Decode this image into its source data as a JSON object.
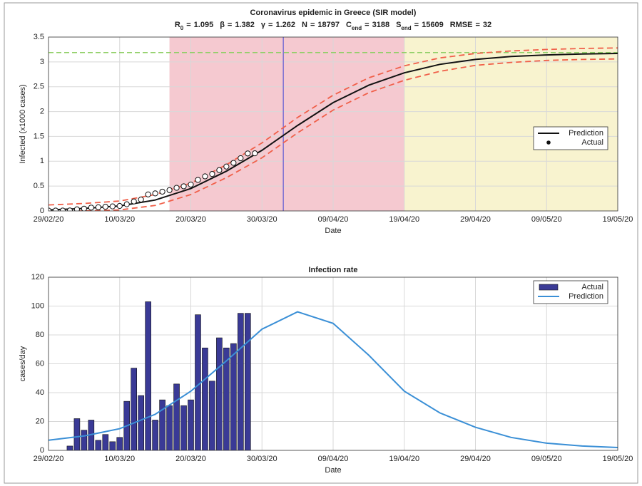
{
  "chart_data": [
    {
      "type": "line",
      "title": "Coronavirus epidemic in Greece (SIR model)",
      "params": [
        {
          "symbol": "R",
          "sub": "0",
          "sign": "=",
          "value": 1.095
        },
        {
          "symbol": "β",
          "sign": "=",
          "value": 1.382
        },
        {
          "symbol": "γ",
          "sign": "=",
          "value": 1.262
        },
        {
          "symbol": "N",
          "sign": "=",
          "value": 18797
        },
        {
          "symbol": "C",
          "sub": "end",
          "sign": "=",
          "value": 3188
        },
        {
          "symbol": "S",
          "sub": "end",
          "sign": "=",
          "value": 15609
        },
        {
          "symbol": "RMSE",
          "sign": "=",
          "value": 32
        }
      ],
      "x_label": "Date",
      "y_label": "Infected (x1000 cases)",
      "xlim": [
        "29/02/20",
        "19/05/20"
      ],
      "xticks": [
        "29/02/20",
        "10/03/20",
        "20/03/20",
        "30/03/20",
        "09/04/20",
        "19/04/20",
        "29/04/20",
        "09/05/20",
        "19/05/20"
      ],
      "ylim": [
        0,
        3.5
      ],
      "yticks": [
        0,
        0.5,
        1,
        1.5,
        2,
        2.5,
        3,
        3.5
      ],
      "grid": true,
      "legend": "east",
      "regions": [
        {
          "start": "17/03/20",
          "end": "19/04/20",
          "color": "#f5c9d0"
        },
        {
          "start": "19/04/20",
          "end": "19/05/20",
          "color": "#f8f3cf"
        }
      ],
      "vline": {
        "x": "02/04/20",
        "color": "#7b6fd3"
      },
      "hline": {
        "y": 3.188,
        "color": "#8fcf66"
      },
      "bounds": {
        "color": "#f0604a",
        "x": [
          "29/02/20",
          "05/03/20",
          "10/03/20",
          "15/03/20",
          "20/03/20",
          "25/03/20",
          "30/03/20",
          "04/04/20",
          "09/04/20",
          "14/04/20",
          "19/04/20",
          "24/04/20",
          "29/04/20",
          "04/05/20",
          "09/05/20",
          "14/05/20",
          "19/05/20"
        ],
        "upper": [
          0.12,
          0.15,
          0.2,
          0.33,
          0.56,
          0.93,
          1.37,
          1.88,
          2.33,
          2.68,
          2.92,
          3.08,
          3.17,
          3.22,
          3.25,
          3.27,
          3.28
        ],
        "lower": [
          -0.02,
          0.0,
          0.02,
          0.11,
          0.33,
          0.67,
          1.07,
          1.57,
          2.03,
          2.38,
          2.63,
          2.81,
          2.93,
          2.99,
          3.03,
          3.05,
          3.06
        ]
      },
      "series": [
        {
          "name": "Prediction",
          "type": "line",
          "color": "#111111",
          "x": [
            "29/02/20",
            "05/03/20",
            "10/03/20",
            "15/03/20",
            "20/03/20",
            "25/03/20",
            "30/03/20",
            "04/04/20",
            "09/04/20",
            "14/04/20",
            "19/04/20",
            "24/04/20",
            "29/04/20",
            "04/05/20",
            "09/05/20",
            "14/05/20",
            "19/05/20"
          ],
          "values": [
            0.02,
            0.05,
            0.1,
            0.22,
            0.45,
            0.8,
            1.22,
            1.72,
            2.18,
            2.53,
            2.78,
            2.95,
            3.05,
            3.11,
            3.14,
            3.16,
            3.17
          ]
        },
        {
          "name": "Actual",
          "type": "scatter",
          "color": "#111111",
          "x": [
            "29/02/20",
            "01/03/20",
            "02/03/20",
            "03/03/20",
            "04/03/20",
            "05/03/20",
            "06/03/20",
            "07/03/20",
            "08/03/20",
            "09/03/20",
            "10/03/20",
            "11/03/20",
            "12/03/20",
            "13/03/20",
            "14/03/20",
            "15/03/20",
            "16/03/20",
            "17/03/20",
            "18/03/20",
            "19/03/20",
            "20/03/20",
            "21/03/20",
            "22/03/20",
            "23/03/20",
            "24/03/20",
            "25/03/20",
            "26/03/20",
            "27/03/20",
            "28/03/20",
            "29/03/20"
          ],
          "values": [
            0.007,
            0.007,
            0.007,
            0.01,
            0.032,
            0.046,
            0.067,
            0.074,
            0.085,
            0.091,
            0.1,
            0.134,
            0.191,
            0.229,
            0.332,
            0.353,
            0.388,
            0.419,
            0.465,
            0.496,
            0.531,
            0.625,
            0.696,
            0.744,
            0.822,
            0.893,
            0.967,
            1.062,
            1.157,
            1.16
          ]
        }
      ]
    },
    {
      "type": "bar",
      "title": "Infection rate",
      "x_label": "Date",
      "y_label": "cases/day",
      "xlim": [
        "29/02/20",
        "19/05/20"
      ],
      "xticks": [
        "29/02/20",
        "10/03/20",
        "20/03/20",
        "30/03/20",
        "09/04/20",
        "19/04/20",
        "29/04/20",
        "09/05/20",
        "19/05/20"
      ],
      "ylim": [
        0,
        120
      ],
      "yticks": [
        0,
        20,
        40,
        60,
        80,
        100,
        120
      ],
      "grid": true,
      "legend": "northeast",
      "series": [
        {
          "name": "Actual",
          "type": "bar",
          "color": "#3a3a96",
          "x": [
            "03/03/20",
            "04/03/20",
            "05/03/20",
            "06/03/20",
            "07/03/20",
            "08/03/20",
            "09/03/20",
            "10/03/20",
            "11/03/20",
            "12/03/20",
            "13/03/20",
            "14/03/20",
            "15/03/20",
            "16/03/20",
            "17/03/20",
            "18/03/20",
            "19/03/20",
            "20/03/20",
            "21/03/20",
            "22/03/20",
            "23/03/20",
            "24/03/20",
            "25/03/20",
            "26/03/20",
            "27/03/20",
            "28/03/20"
          ],
          "values": [
            3,
            22,
            14,
            21,
            7,
            11,
            6,
            9,
            34,
            57,
            38,
            103,
            21,
            35,
            31,
            46,
            31,
            35,
            94,
            71,
            48,
            78,
            71,
            74,
            95,
            95
          ]
        },
        {
          "name": "Prediction",
          "type": "line",
          "color": "#3a8fd6",
          "x": [
            "29/02/20",
            "05/03/20",
            "10/03/20",
            "15/03/20",
            "20/03/20",
            "25/03/20",
            "30/03/20",
            "04/04/20",
            "09/04/20",
            "14/04/20",
            "19/04/20",
            "24/04/20",
            "29/04/20",
            "04/05/20",
            "09/05/20",
            "14/05/20",
            "19/05/20"
          ],
          "values": [
            7,
            10,
            15,
            25,
            41,
            62,
            84,
            96,
            88,
            66,
            41,
            26,
            16,
            9,
            5,
            3,
            2
          ]
        }
      ]
    }
  ]
}
